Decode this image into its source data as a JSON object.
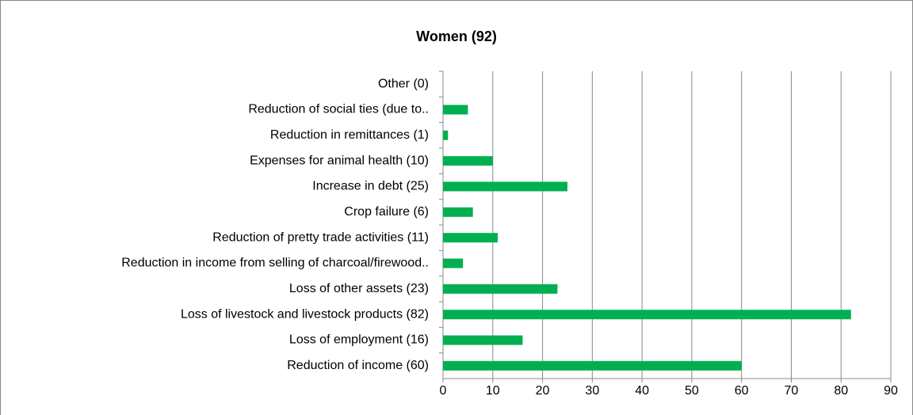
{
  "chart_data": {
    "type": "bar",
    "orientation": "horizontal",
    "title": "Women (92)",
    "categories": [
      "Other (0)",
      "Reduction of social ties (due to..",
      "Reduction in remittances (1)",
      "Expenses for animal health (10)",
      "Increase in debt (25)",
      "Crop failure (6)",
      "Reduction of pretty trade activities (11)",
      "Reduction in income from selling of charcoal/firewood..",
      "Loss of other assets (23)",
      "Loss of livestock and livestock products (82)",
      "Loss of employment (16)",
      "Reduction of income (60)"
    ],
    "values": [
      0,
      5,
      1,
      10,
      25,
      6,
      11,
      4,
      23,
      82,
      16,
      60
    ],
    "color": "#00b050",
    "xlim": [
      0,
      90
    ],
    "xticks": [
      0,
      10,
      20,
      30,
      40,
      50,
      60,
      70,
      80,
      90
    ],
    "grid": true
  }
}
